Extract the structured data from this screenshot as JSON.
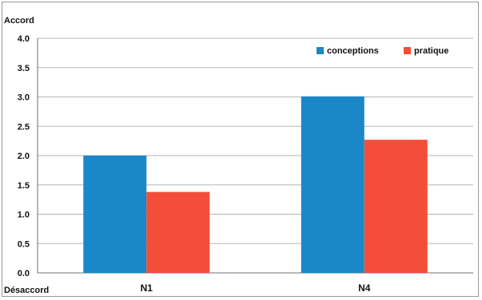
{
  "chart_data": {
    "type": "bar",
    "ylabel_top": "Accord",
    "ylabel_bottom": "Désaccord",
    "categories": [
      "N1",
      "N4"
    ],
    "series": [
      {
        "name": "conceptions",
        "color": "#1a87c8",
        "values": [
          2.0,
          3.01
        ]
      },
      {
        "name": "pratique",
        "color": "#f24e3a",
        "values": [
          1.38,
          2.27
        ]
      }
    ],
    "ylim": [
      0,
      4
    ],
    "yticks": [
      "0.0",
      "0.5",
      "1.0",
      "1.5",
      "2.0",
      "2.5",
      "3.0",
      "3.5",
      "4.0"
    ],
    "grid": true,
    "legend_position": "top-right"
  }
}
